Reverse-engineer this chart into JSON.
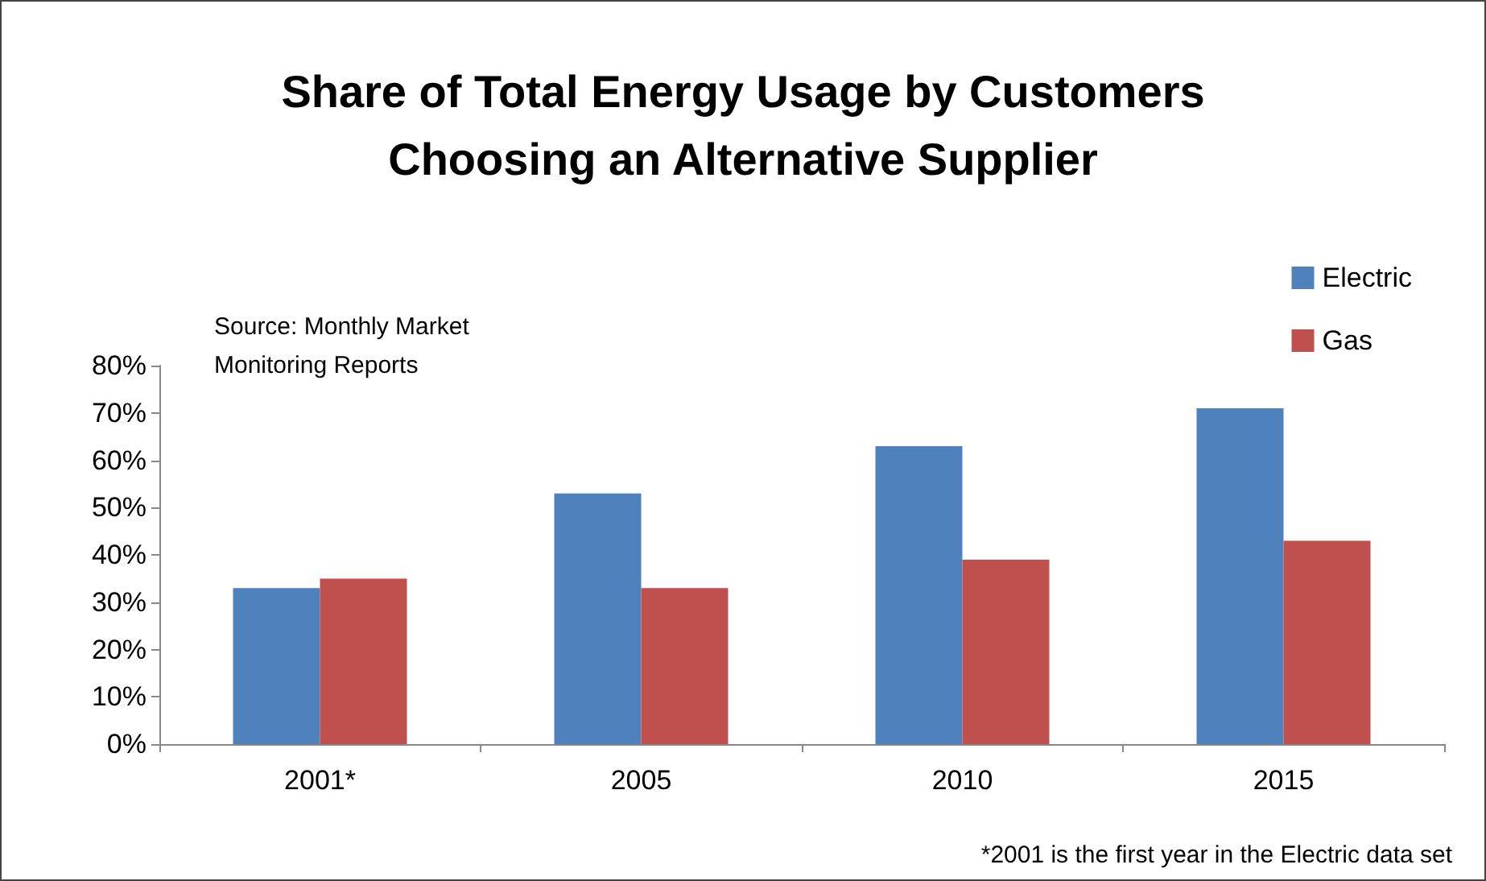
{
  "chart_data": {
    "type": "bar",
    "title": "Share of Total Energy Usage by Customers\nChoosing an Alternative Supplier",
    "categories": [
      "2001*",
      "2005",
      "2010",
      "2015"
    ],
    "series": [
      {
        "name": "Electric",
        "color": "#4f81bd",
        "values": [
          33,
          53,
          63,
          71
        ]
      },
      {
        "name": "Gas",
        "color": "#c0504d",
        "values": [
          35,
          33,
          39,
          43
        ]
      }
    ],
    "ylim": [
      0,
      80
    ],
    "yticks": [
      {
        "value": 0,
        "label": "0%"
      },
      {
        "value": 10,
        "label": "10%"
      },
      {
        "value": 20,
        "label": "20%"
      },
      {
        "value": 30,
        "label": "30%"
      },
      {
        "value": 40,
        "label": "40%"
      },
      {
        "value": 50,
        "label": "50%"
      },
      {
        "value": 60,
        "label": "60%"
      },
      {
        "value": 70,
        "label": "70%"
      },
      {
        "value": 80,
        "label": "80%"
      }
    ],
    "annotations": [
      "Source: Monthly Market\nMonitoring Reports",
      "*2001 is the first year in the Electric data set"
    ],
    "grid": false,
    "legend": "top right"
  }
}
